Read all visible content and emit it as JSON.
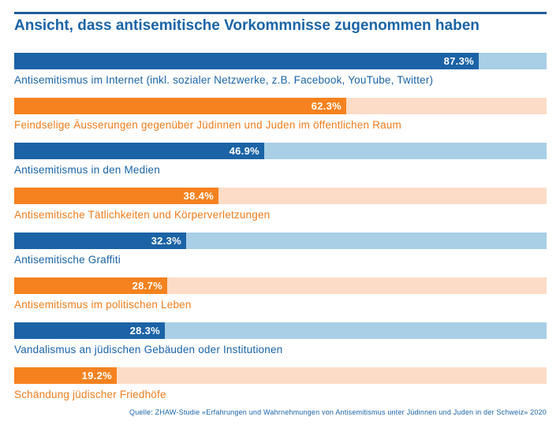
{
  "title": "Ansicht, dass antisemitische Vorkommnisse zugenommen haben",
  "source": "Quelle: ZHAW-Studie «Erfahrungen und Wahrnehmungen von Antisemitismus unter Jüdinnen und Juden in der Schweiz» 2020",
  "colors": {
    "title": "#1a64a8",
    "rule": "#1f5d9c",
    "blue_fill": "#1b63a6",
    "blue_track": "#a8cfe6",
    "blue_label": "#1a64a8",
    "orange_fill": "#f5821f",
    "orange_track": "#fcdcc6",
    "orange_label": "#f07d1d"
  },
  "chart_data": {
    "type": "bar",
    "orientation": "horizontal",
    "title": "Ansicht, dass antisemitische Vorkommnisse zugenommen haben",
    "xlim": [
      0,
      100
    ],
    "unit": "%",
    "categories": [
      "Antisemitismus im Internet (inkl. sozialer Netzwerke, z.B. Facebook, YouTube, Twitter)",
      "Feindselige Äusserungen gegenüber Jüdinnen und Juden im öffentlichen Raum",
      "Antisemitismus in den Medien",
      "Antisemitische Tätlichkeiten und Körperverletzungen",
      "Antisemitische Graffiti",
      "Antisemitismus im politischen Leben",
      "Vandalismus an jüdischen Gebäuden oder Institutionen",
      "Schändung jüdischer Friedhöfe"
    ],
    "values": [
      87.3,
      62.3,
      46.9,
      38.4,
      32.3,
      28.7,
      28.3,
      19.2
    ],
    "value_labels": [
      "87.3%",
      "62.3%",
      "46.9%",
      "38.4%",
      "32.3%",
      "28.7%",
      "28.3%",
      "19.2%"
    ],
    "bar_colors": [
      "blue",
      "orange",
      "blue",
      "orange",
      "blue",
      "orange",
      "blue",
      "orange"
    ]
  }
}
